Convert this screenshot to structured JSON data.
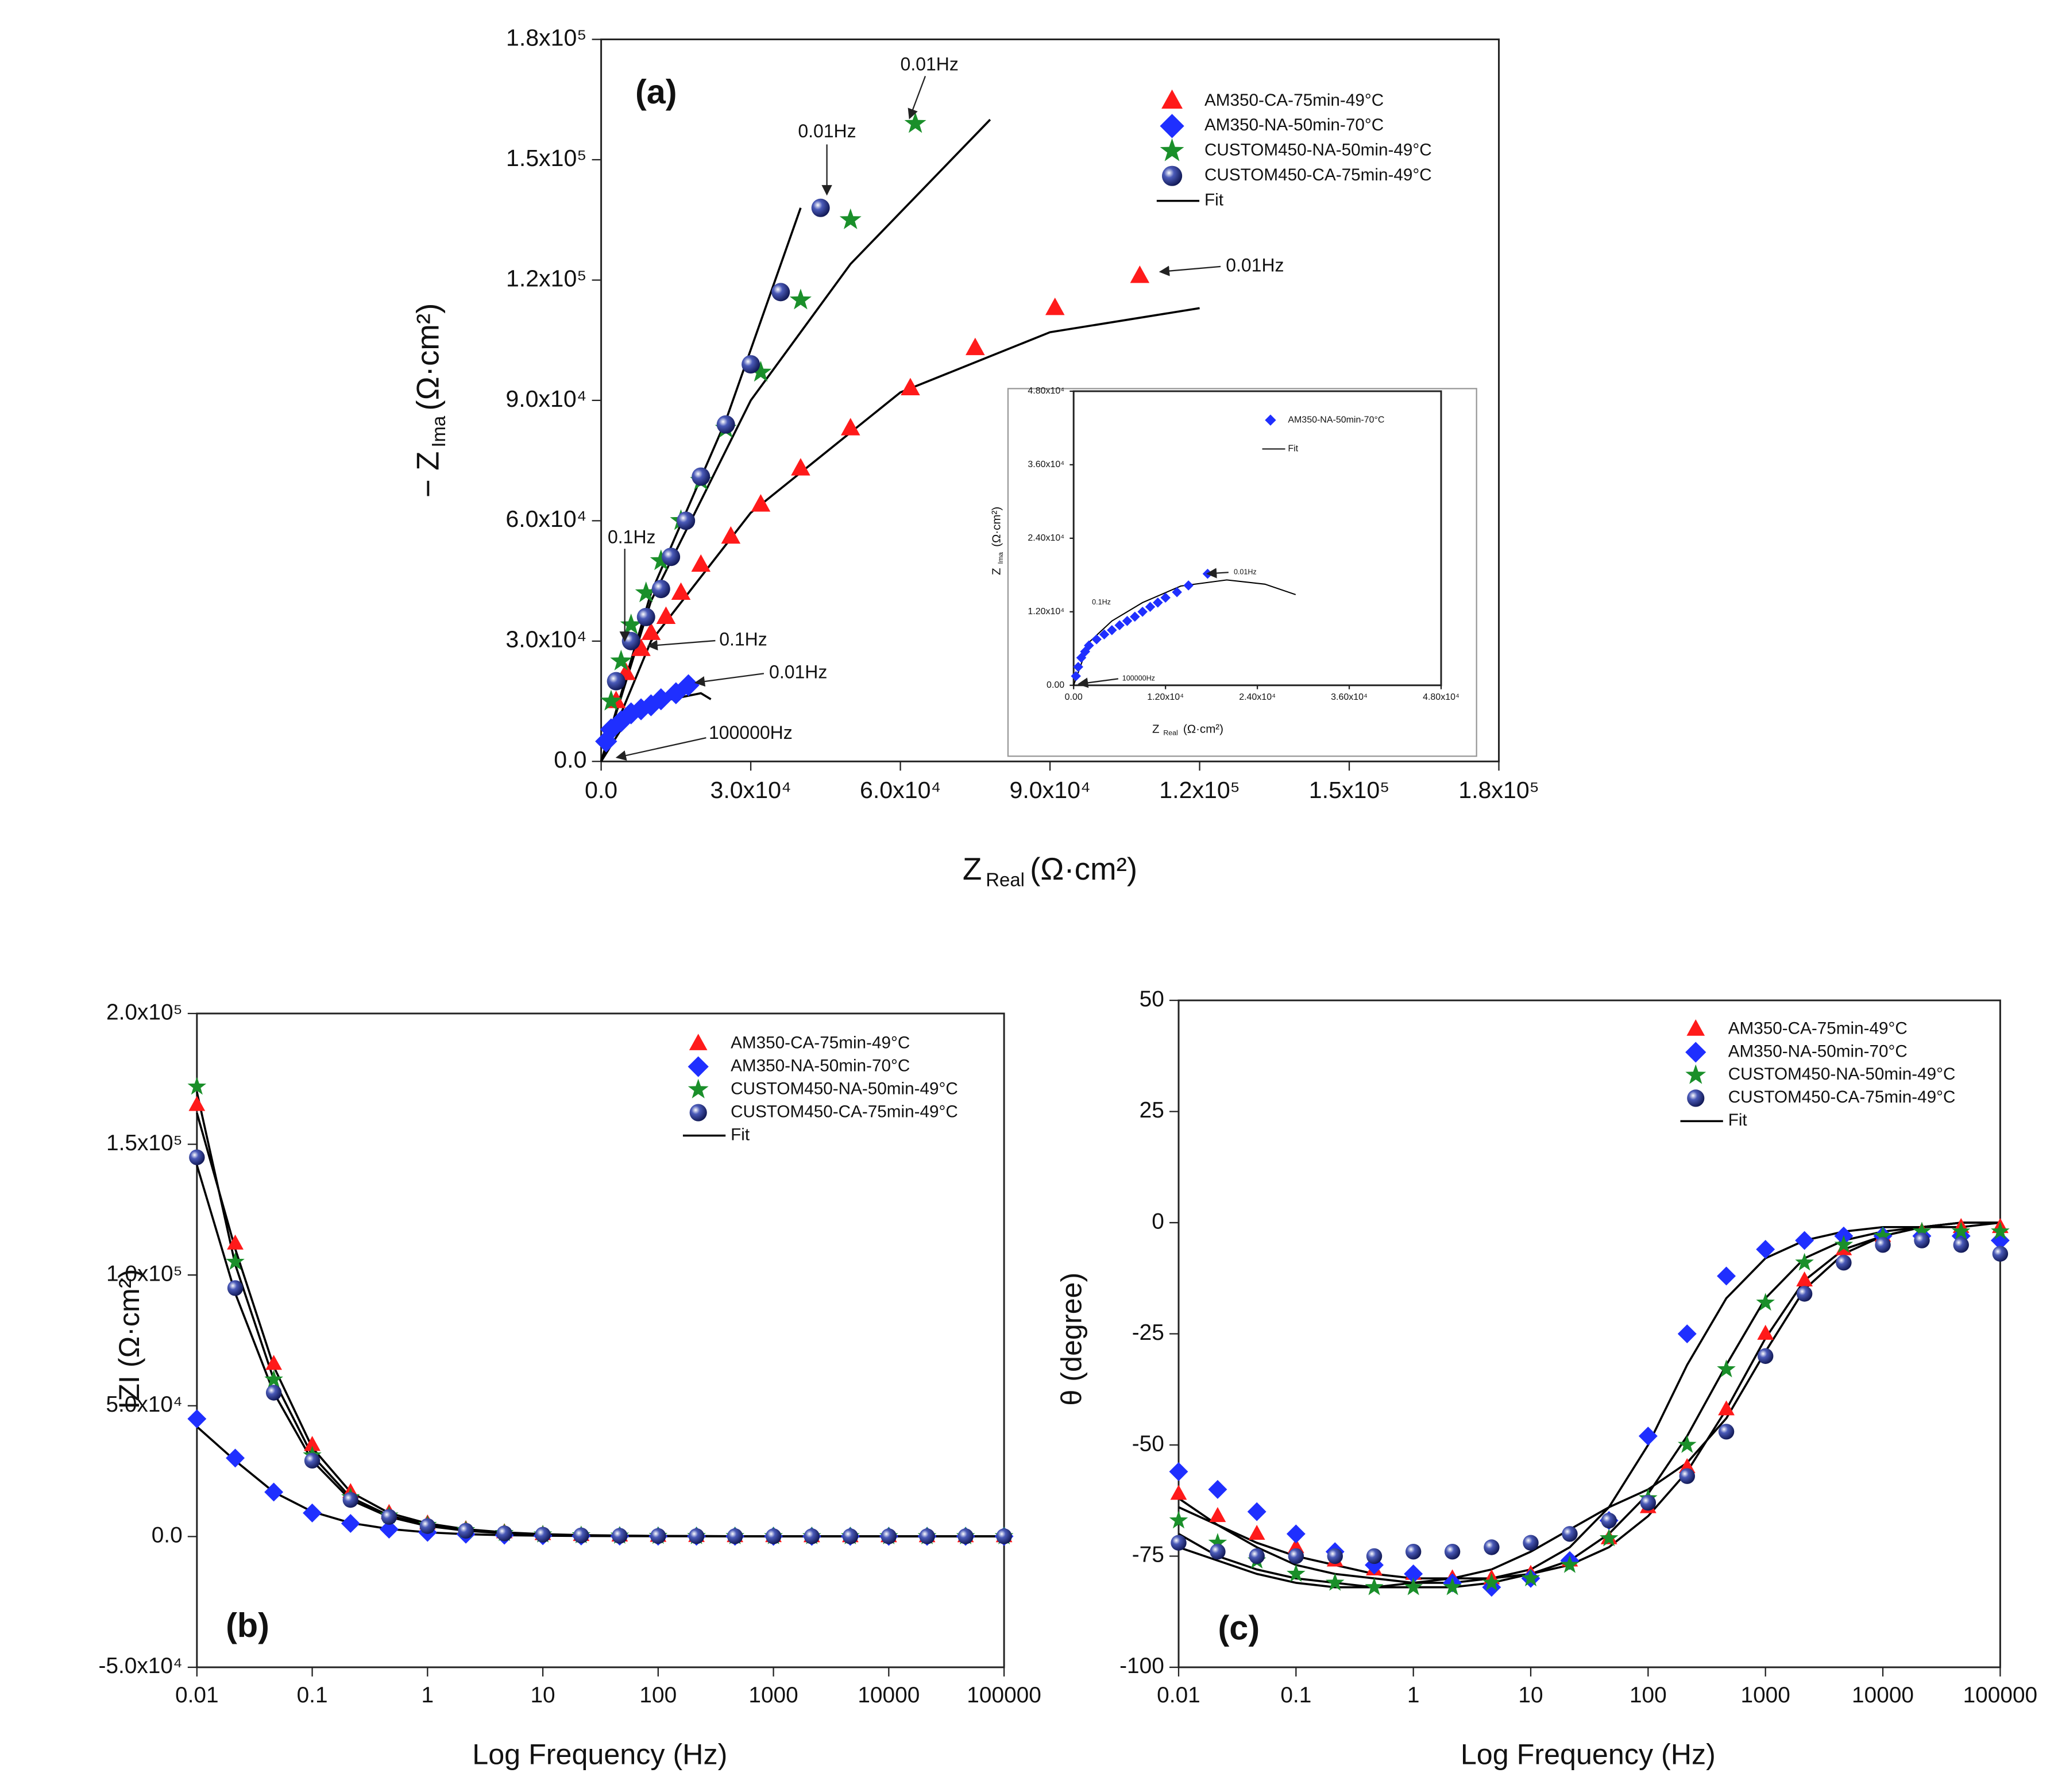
{
  "chart_data": [
    {
      "type": "scatter",
      "label": "(a)",
      "x_label": {
        "text": "Z",
        "sub": "Real",
        "unit": "(Ω·cm²)"
      },
      "y_label": {
        "text": "− Z",
        "sub": "Ima",
        "unit": "(Ω·cm²)"
      },
      "xlim": [
        0,
        180000
      ],
      "ylim": [
        0,
        180000
      ],
      "xticks": [
        {
          "value": 0,
          "label": "0.0"
        },
        {
          "value": 30000,
          "label": "3.0x10⁴"
        },
        {
          "value": 60000,
          "label": "6.0x10⁴"
        },
        {
          "value": 90000,
          "label": "9.0x10⁴"
        },
        {
          "value": 120000,
          "label": "1.2x10⁵"
        },
        {
          "value": 150000,
          "label": "1.5x10⁵"
        },
        {
          "value": 180000,
          "label": "1.8x10⁵"
        }
      ],
      "yticks": [
        {
          "value": 0,
          "label": "0.0"
        },
        {
          "value": 30000,
          "label": "3.0x10⁴"
        },
        {
          "value": 60000,
          "label": "6.0x10⁴"
        },
        {
          "value": 90000,
          "label": "9.0x10⁴"
        },
        {
          "value": 120000,
          "label": "1.2x10⁵"
        },
        {
          "value": 150000,
          "label": "1.5x10⁵"
        },
        {
          "value": 180000,
          "label": "1.8x10⁵"
        }
      ],
      "fit_name": "Fit",
      "fit_color": "#000000",
      "annotations": [
        "0.01Hz",
        "0.01Hz",
        "0.01Hz",
        "0.1Hz",
        "0.1Hz",
        "0.01Hz",
        "100000Hz"
      ],
      "series": [
        {
          "name": "AM350-CA-75min-49°C",
          "color": "#ff1a1a",
          "marker": "triangle",
          "x": [
            3000,
            5000,
            8000,
            10000,
            13000,
            16000,
            20000,
            26000,
            32000,
            40000,
            50000,
            62000,
            75000,
            91000,
            108000
          ],
          "values": [
            15000,
            22000,
            28000,
            32000,
            36000,
            42000,
            49000,
            56000,
            64000,
            73000,
            83000,
            93000,
            103000,
            113000,
            121000
          ],
          "fit_x": [
            0,
            10000,
            30000,
            60000,
            90000,
            120000
          ],
          "fit_values": [
            0,
            30000,
            62000,
            92000,
            107000,
            113000
          ]
        },
        {
          "name": "AM350-NA-50min-70°C",
          "color": "#1f2fff",
          "marker": "diamond",
          "x": [
            1000,
            2000,
            4000,
            6000,
            8000,
            10000,
            12000,
            15000,
            17500
          ],
          "values": [
            5000,
            8000,
            10000,
            12000,
            13000,
            14000,
            15500,
            17000,
            19000
          ],
          "fit_x": [
            0,
            5000,
            12000,
            20000,
            22000
          ],
          "fit_values": [
            0,
            10000,
            15000,
            17000,
            15500
          ]
        },
        {
          "name": "CUSTOM450-NA-50min-49°C",
          "color": "#1a8f2a",
          "marker": "star",
          "x": [
            2000,
            4000,
            6000,
            9000,
            12000,
            16000,
            20000,
            25000,
            32000,
            40000,
            50000,
            63000
          ],
          "values": [
            15000,
            25000,
            34000,
            42000,
            50000,
            60000,
            70000,
            83000,
            97000,
            115000,
            135000,
            159000
          ],
          "fit_x": [
            0,
            10000,
            30000,
            50000,
            78000
          ],
          "fit_values": [
            0,
            40000,
            90000,
            124000,
            160000
          ]
        },
        {
          "name": "CUSTOM450-CA-75min-49°C",
          "color": "#1c2a7a",
          "marker": "sphere",
          "x": [
            3000,
            6000,
            9000,
            12000,
            14000,
            17000,
            20000,
            25000,
            30000,
            36000,
            44000
          ],
          "values": [
            20000,
            30000,
            36000,
            43000,
            51000,
            60000,
            71000,
            84000,
            99000,
            117000,
            138000
          ],
          "fit_x": [
            0,
            10000,
            25000,
            40000
          ],
          "fit_values": [
            0,
            42000,
            85000,
            138000
          ]
        }
      ]
    },
    {
      "type": "scatter",
      "label": "(b)",
      "xscale": "log",
      "x_label": "Log Frequency (Hz)",
      "y_label": "IZI (Ω·cm²)",
      "xlim": [
        0.01,
        100000
      ],
      "ylim": [
        -50000,
        200000
      ],
      "xticks": [
        0.01,
        0.1,
        1,
        10,
        100,
        1000,
        10000,
        100000
      ],
      "yticks": [
        {
          "value": -50000,
          "label": "-5.0x10⁴"
        },
        {
          "value": 0,
          "label": "0.0"
        },
        {
          "value": 50000,
          "label": "5.0x10⁴"
        },
        {
          "value": 100000,
          "label": "1.0x10⁵"
        },
        {
          "value": 150000,
          "label": "1.5x10⁵"
        },
        {
          "value": 200000,
          "label": "2.0x10⁵"
        }
      ],
      "fit_name": "Fit",
      "fit_color": "#000000",
      "x": [
        0.01,
        0.0215,
        0.0464,
        0.1,
        0.215,
        0.464,
        1,
        2.15,
        4.64,
        10,
        21.5,
        46.4,
        100,
        215,
        464,
        1000,
        2150,
        4640,
        10000,
        21500,
        46400,
        100000
      ],
      "series": [
        {
          "name": "AM350-CA-75min-49°C",
          "color": "#ff1a1a",
          "marker": "triangle",
          "values": [
            165000,
            112000,
            66000,
            35000,
            17000,
            9000,
            5000,
            2800,
            1600,
            900,
            550,
            350,
            230,
            160,
            120,
            100,
            90,
            85,
            80,
            80,
            80,
            80
          ],
          "fit_values": [
            162000,
            110000,
            65000,
            34000,
            17000,
            9000,
            5000,
            2800,
            1600,
            900,
            550,
            350,
            230,
            160,
            120,
            100,
            90,
            85,
            80,
            80,
            80,
            80
          ]
        },
        {
          "name": "AM350-NA-50min-70°C",
          "color": "#1f2fff",
          "marker": "diamond",
          "values": [
            45000,
            30000,
            17000,
            9000,
            5000,
            2800,
            1600,
            900,
            500,
            300,
            200,
            150,
            110,
            90,
            80,
            75,
            70,
            70,
            70,
            70,
            70,
            70
          ],
          "fit_values": [
            42000,
            29000,
            17000,
            9500,
            5200,
            2900,
            1600,
            900,
            500,
            300,
            200,
            150,
            110,
            90,
            80,
            75,
            70,
            70,
            70,
            70,
            70,
            70
          ]
        },
        {
          "name": "CUSTOM450-NA-50min-49°C",
          "color": "#1a8f2a",
          "marker": "star",
          "values": [
            172000,
            105000,
            60000,
            31000,
            15000,
            8000,
            4400,
            2400,
            1300,
            750,
            450,
            300,
            200,
            140,
            110,
            95,
            88,
            84,
            80,
            80,
            80,
            80
          ],
          "fit_values": [
            170000,
            104000,
            60000,
            31000,
            15000,
            8000,
            4400,
            2400,
            1300,
            750,
            450,
            300,
            200,
            140,
            110,
            95,
            88,
            84,
            80,
            80,
            80,
            80
          ]
        },
        {
          "name": "CUSTOM450-CA-75min-49°C",
          "color": "#1c2a7a",
          "marker": "sphere",
          "values": [
            145000,
            95000,
            55000,
            29000,
            14000,
            7500,
            4000,
            2200,
            1200,
            700,
            420,
            280,
            190,
            140,
            110,
            95,
            88,
            84,
            80,
            80,
            80,
            80
          ],
          "fit_values": [
            142000,
            93000,
            55000,
            29000,
            14000,
            7500,
            4000,
            2200,
            1200,
            700,
            420,
            280,
            190,
            140,
            110,
            95,
            88,
            84,
            80,
            80,
            80,
            80
          ]
        }
      ]
    },
    {
      "type": "scatter",
      "label": "(c)",
      "xscale": "log",
      "x_label": "Log Frequency (Hz)",
      "y_label": "θ (degree)",
      "xlim": [
        0.01,
        100000
      ],
      "ylim": [
        -100,
        50
      ],
      "xticks": [
        0.01,
        0.1,
        1,
        10,
        100,
        1000,
        10000,
        100000
      ],
      "yticks": [
        -100,
        -75,
        -50,
        -25,
        0,
        25,
        50
      ],
      "fit_name": "Fit",
      "fit_color": "#000000",
      "x": [
        0.01,
        0.0215,
        0.0464,
        0.1,
        0.215,
        0.464,
        1,
        2.15,
        4.64,
        10,
        21.5,
        46.4,
        100,
        215,
        464,
        1000,
        2150,
        4640,
        10000,
        21500,
        46400,
        100000
      ],
      "series": [
        {
          "name": "AM350-CA-75min-49°C",
          "color": "#ff1a1a",
          "marker": "triangle",
          "values": [
            -61,
            -66,
            -70,
            -73,
            -76,
            -78,
            -79,
            -80,
            -80,
            -79,
            -76,
            -71,
            -64,
            -55,
            -42,
            -25,
            -13,
            -6,
            -3,
            -2,
            -1,
            -1
          ],
          "fit_values": [
            -64,
            -68,
            -72,
            -75,
            -77,
            -79,
            -80,
            -80,
            -80,
            -79,
            -77,
            -73,
            -66,
            -56,
            -42,
            -26,
            -13,
            -6,
            -3,
            -1,
            -1,
            0
          ]
        },
        {
          "name": "AM350-NA-50min-70°C",
          "color": "#1f2fff",
          "marker": "diamond",
          "values": [
            -56,
            -60,
            -65,
            -70,
            -74,
            -77,
            -79,
            -81,
            -82,
            -80,
            -76,
            -67,
            -48,
            -25,
            -12,
            -6,
            -4,
            -3,
            -3,
            -3,
            -3,
            -4
          ],
          "fit_values": [
            -62,
            -68,
            -73,
            -77,
            -79,
            -80,
            -81,
            -81,
            -80,
            -78,
            -73,
            -64,
            -50,
            -32,
            -17,
            -8,
            -4,
            -2,
            -1,
            -1,
            0,
            0
          ]
        },
        {
          "name": "CUSTOM450-NA-50min-49°C",
          "color": "#1a8f2a",
          "marker": "star",
          "values": [
            -67,
            -72,
            -76,
            -79,
            -81,
            -82,
            -82,
            -82,
            -81,
            -80,
            -77,
            -71,
            -62,
            -50,
            -33,
            -18,
            -9,
            -5,
            -3,
            -2,
            -2,
            -2
          ],
          "fit_values": [
            -70,
            -75,
            -78,
            -80,
            -81,
            -82,
            -82,
            -82,
            -81,
            -79,
            -76,
            -70,
            -61,
            -48,
            -32,
            -17,
            -8,
            -4,
            -2,
            -1,
            0,
            0
          ]
        },
        {
          "name": "CUSTOM450-CA-75min-49°C",
          "color": "#1c2a7a",
          "marker": "sphere",
          "values": [
            -72,
            -74,
            -75,
            -75,
            -75,
            -75,
            -74,
            -74,
            -73,
            -72,
            -70,
            -67,
            -63,
            -57,
            -47,
            -30,
            -16,
            -9,
            -5,
            -4,
            -5,
            -7
          ],
          "fit_values": [
            -73,
            -76,
            -79,
            -81,
            -82,
            -82,
            -81,
            -80,
            -78,
            -74,
            -69,
            -64,
            -60,
            -54,
            -44,
            -29,
            -15,
            -7,
            -3,
            -1,
            0,
            0
          ]
        }
      ]
    },
    {
      "type": "scatter",
      "x_label": {
        "text": "Z",
        "sub": "Real",
        "unit": "(Ω·cm²)"
      },
      "y_label": {
        "text": "Z",
        "sub": "Ima",
        "unit": "(Ω·cm²)"
      },
      "xlim": [
        0,
        48000
      ],
      "ylim": [
        0,
        48000
      ],
      "xticks": [
        {
          "value": 0,
          "label": "0.00"
        },
        {
          "value": 12000,
          "label": "1.20x10⁴"
        },
        {
          "value": 24000,
          "label": "2.40x10⁴"
        },
        {
          "value": 36000,
          "label": "3.60x10⁴"
        },
        {
          "value": 48000,
          "label": "4.80x10⁴"
        }
      ],
      "yticks": [
        {
          "value": 0,
          "label": "0.00"
        },
        {
          "value": 12000,
          "label": "1.20x10⁴"
        },
        {
          "value": 24000,
          "label": "2.40x10⁴"
        },
        {
          "value": 36000,
          "label": "3.60x10⁴"
        },
        {
          "value": 48000,
          "label": "4.80x10⁴"
        }
      ],
      "fit_name": "Fit",
      "fit_color": "#000000",
      "annotations": [
        "0.01Hz",
        "0.1Hz",
        "100000Hz"
      ],
      "series": [
        {
          "name": "AM350-NA-50min-70°C",
          "color": "#1f2fff",
          "marker": "diamond",
          "x": [
            300,
            600,
            1000,
            1500,
            2000,
            3000,
            4000,
            5000,
            6000,
            7000,
            8000,
            9000,
            10000,
            11000,
            12000,
            13500,
            15000,
            17500
          ],
          "values": [
            1500,
            3000,
            4500,
            5500,
            6500,
            7500,
            8300,
            9000,
            9800,
            10500,
            11200,
            12000,
            12800,
            13500,
            14300,
            15200,
            16300,
            18200
          ],
          "fit_x": [
            0,
            2000,
            5000,
            9000,
            14000,
            20000,
            25000,
            29000
          ],
          "fit_values": [
            0,
            7000,
            10500,
            13500,
            16200,
            17200,
            16500,
            14800
          ]
        }
      ]
    }
  ]
}
